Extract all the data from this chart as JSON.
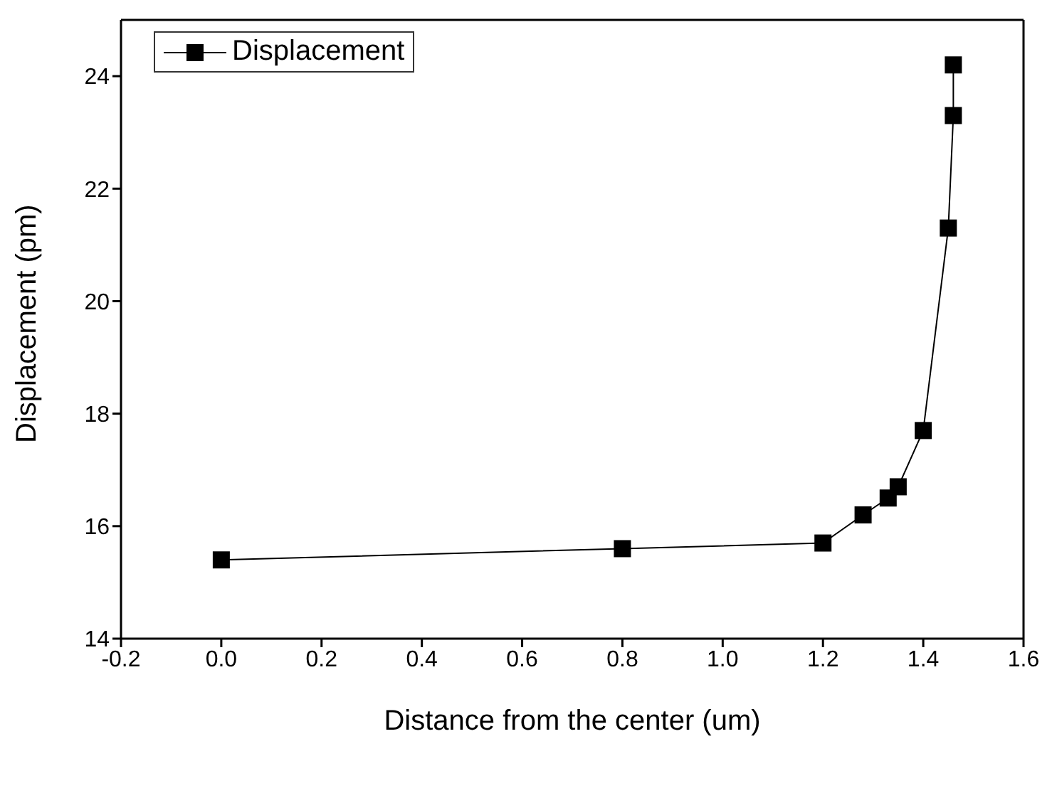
{
  "chart_data": {
    "type": "line",
    "xlabel": "Distance from the center (um)",
    "ylabel": "Displacement (pm)",
    "xlim": [
      -0.2,
      1.6
    ],
    "xticks": [
      {
        "value": -0.2,
        "label": "-0.2"
      },
      {
        "value": 0,
        "label": "0.0"
      },
      {
        "value": 0.2,
        "label": "0.2"
      },
      {
        "value": 0.4,
        "label": "0.4"
      },
      {
        "value": 0.6,
        "label": "0.6"
      },
      {
        "value": 0.8,
        "label": "0.8"
      },
      {
        "value": 1,
        "label": "1.0"
      },
      {
        "value": 1.2,
        "label": "1.2"
      },
      {
        "value": 1.4,
        "label": "1.4"
      },
      {
        "value": 1.6,
        "label": "1.6"
      }
    ],
    "ylim": [
      14,
      25
    ],
    "yticks": [
      14,
      16,
      18,
      20,
      22,
      24
    ],
    "x": [
      0,
      0.8,
      1.2,
      1.28,
      1.33,
      1.35,
      1.4,
      1.45,
      1.46,
      1.46
    ],
    "series": [
      {
        "name": "Displacement",
        "color": "#000000",
        "values": [
          15.4,
          15.6,
          15.7,
          16.2,
          16.5,
          16.7,
          17.7,
          21.3,
          23.3,
          24.2
        ]
      }
    ],
    "marker": "square",
    "line_style": "solid",
    "grid": false,
    "legend": "top left"
  }
}
